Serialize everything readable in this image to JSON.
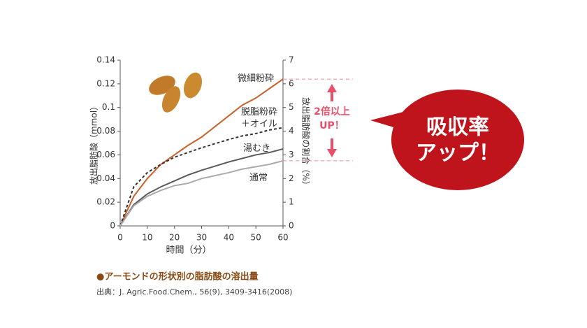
{
  "chart_data": {
    "type": "line",
    "y_label": "放出脂肪酸（mmol）",
    "y2_label": "放出脂肪酸の割合（%）",
    "x_label": "時間（分）",
    "x": [
      0,
      5,
      10,
      15,
      20,
      25,
      30,
      40,
      45,
      50,
      55,
      60
    ],
    "xlim": [
      0,
      60
    ],
    "xticks": [
      0,
      10,
      20,
      30,
      40,
      50,
      60
    ],
    "ylim": [
      0,
      0.14
    ],
    "yticks": [
      0,
      0.02,
      0.04,
      0.06,
      0.08,
      0.1,
      0.12,
      0.14
    ],
    "y2lim": [
      0,
      7
    ],
    "y2ticks": [
      0,
      1,
      2,
      3,
      4,
      5,
      6,
      7
    ],
    "series": [
      {
        "name": "微細粉砕",
        "color": "#c8602a",
        "dashed": false,
        "values": [
          0,
          0.025,
          0.04,
          0.052,
          0.06,
          0.068,
          0.075,
          0.093,
          0.102,
          0.108,
          0.116,
          0.124
        ]
      },
      {
        "name": "脱脂粉砕＋オイル",
        "color": "#333333",
        "dashed": true,
        "values": [
          0,
          0.033,
          0.045,
          0.052,
          0.058,
          0.062,
          0.066,
          0.073,
          0.076,
          0.078,
          0.081,
          0.083
        ]
      },
      {
        "name": "湯むき",
        "color": "#5a5a5a",
        "dashed": false,
        "values": [
          0,
          0.018,
          0.027,
          0.033,
          0.038,
          0.043,
          0.047,
          0.054,
          0.057,
          0.06,
          0.062,
          0.065
        ]
      },
      {
        "name": "通常",
        "color": "#aaaaaa",
        "dashed": false,
        "values": [
          0,
          0.017,
          0.025,
          0.03,
          0.034,
          0.036,
          0.04,
          0.045,
          0.048,
          0.05,
          0.052,
          0.055
        ]
      }
    ],
    "annotations": [
      "2倍以上",
      "UP！"
    ],
    "callout": [
      "吸収率",
      "アップ！"
    ],
    "caption": "●アーモンドの形状別の脂肪酸の溶出量",
    "source": "出典：J. Agric.Food.Chem., 56(9), 3409-3416(2008)"
  }
}
